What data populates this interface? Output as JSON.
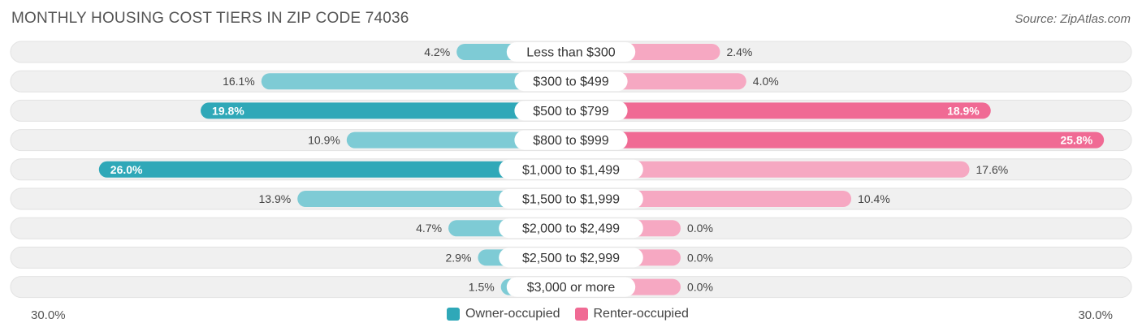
{
  "title": "MONTHLY HOUSING COST TIERS IN ZIP CODE 74036",
  "source": "Source: ZipAtlas.com",
  "colors": {
    "owner": "#2fa8b8",
    "owner_light": "#7ecbd5",
    "renter": "#f06a94",
    "renter_light": "#f6a8c2",
    "track": "#f0f0f0"
  },
  "chart_data": {
    "type": "bar",
    "orientation": "horizontal-diverging",
    "title": "MONTHLY HOUSING COST TIERS IN ZIP CODE 74036",
    "categories": [
      "Less than $300",
      "$300 to $499",
      "$500 to $799",
      "$800 to $999",
      "$1,000 to $1,499",
      "$1,500 to $1,999",
      "$2,000 to $2,499",
      "$2,500 to $2,999",
      "$3,000 or more"
    ],
    "series": [
      {
        "name": "Owner-occupied",
        "values": [
          4.2,
          16.1,
          19.8,
          10.9,
          26.0,
          13.9,
          4.7,
          2.9,
          1.5
        ],
        "labels": [
          "4.2%",
          "16.1%",
          "19.8%",
          "10.9%",
          "26.0%",
          "13.9%",
          "4.7%",
          "2.9%",
          "1.5%"
        ]
      },
      {
        "name": "Renter-occupied",
        "values": [
          2.4,
          4.0,
          18.9,
          25.8,
          17.6,
          10.4,
          0.0,
          0.0,
          0.0
        ],
        "labels": [
          "2.4%",
          "4.0%",
          "18.9%",
          "25.8%",
          "17.6%",
          "10.4%",
          "0.0%",
          "0.0%",
          "0.0%"
        ]
      }
    ],
    "axis_max": 30.0,
    "axis_left_label": "30.0%",
    "axis_right_label": "30.0%",
    "legend_position": "bottom-center"
  }
}
